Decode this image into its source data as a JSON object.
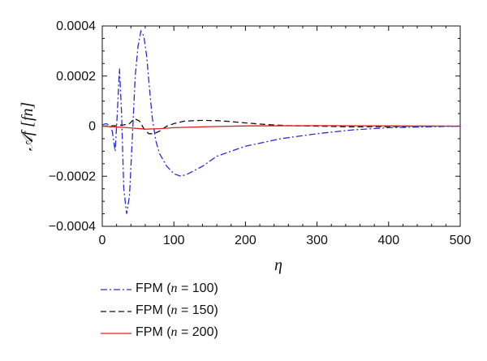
{
  "chart_data": {
    "type": "line",
    "xlabel": "η",
    "ylabel": "𝒜f [fn]",
    "xlim": [
      0,
      500
    ],
    "ylim": [
      -0.0004,
      0.0004
    ],
    "x_ticks": [
      0,
      100,
      200,
      300,
      400,
      500
    ],
    "x_tick_labels": [
      "0",
      "100",
      "200",
      "300",
      "400",
      "500"
    ],
    "y_ticks": [
      0.0004,
      0.0002,
      0,
      -0.0002,
      -0.0004
    ],
    "y_tick_labels": [
      "0.0004",
      "0.0002",
      "0",
      "−0.0002",
      "−0.0004"
    ],
    "grid": false,
    "legend_position": "bottom-left, below plot",
    "series": [
      {
        "name": "FPM (n = 100)",
        "color": "#2a2ad6",
        "style": "dash-dot",
        "x": [
          0,
          5,
          10,
          14,
          18,
          21,
          24,
          27,
          30,
          34,
          38,
          42,
          46,
          50,
          54,
          58,
          62,
          66,
          70,
          75,
          80,
          90,
          100,
          110,
          120,
          140,
          160,
          180,
          200,
          250,
          300,
          350,
          400,
          450,
          500
        ],
        "y": [
          5e-06,
          1e-05,
          5e-06,
          -2e-05,
          -0.0001,
          5e-05,
          0.00023,
          5e-05,
          -0.00025,
          -0.00035,
          -0.00028,
          -5e-05,
          0.0002,
          0.00032,
          0.00038,
          0.00036,
          0.00028,
          0.00015,
          3e-05,
          -6e-05,
          -0.00011,
          -0.00016,
          -0.00019,
          -0.0002,
          -0.00019,
          -0.00016,
          -0.00012,
          -0.0001,
          -8e-05,
          -5e-05,
          -3e-05,
          -1.5e-05,
          -6e-06,
          -3e-06,
          0
        ]
      },
      {
        "name": "FPM (n = 150)",
        "color": "#111111",
        "style": "dashed",
        "x": [
          0,
          20,
          30,
          38,
          45,
          52,
          58,
          65,
          72,
          80,
          90,
          100,
          115,
          130,
          140,
          160,
          180,
          200,
          230,
          260,
          300,
          350,
          400,
          450,
          500
        ],
        "y": [
          0,
          2e-06,
          5e-06,
          1e-05,
          3e-05,
          2e-05,
          -1e-05,
          -3e-05,
          -3e-05,
          -2e-05,
          0,
          1e-05,
          2e-05,
          2.2e-05,
          2.3e-05,
          2.2e-05,
          1.8e-05,
          1.3e-05,
          6e-06,
          2e-06,
          0,
          -3e-06,
          -2e-06,
          0,
          0
        ]
      },
      {
        "name": "FPM (n = 200)",
        "color": "#e02020",
        "style": "solid",
        "x": [
          0,
          30,
          60,
          80,
          100,
          150,
          200,
          300,
          400,
          500
        ],
        "y": [
          0,
          -5e-06,
          -1.2e-05,
          -1e-05,
          -6e-06,
          -2e-06,
          1e-06,
          2e-06,
          1e-06,
          0
        ]
      }
    ]
  },
  "legend": {
    "items": [
      {
        "prefix": "FPM (",
        "var": "n",
        "suffix": " = 100)",
        "color": "#2a2ad6",
        "style": "dash-dot"
      },
      {
        "prefix": "FPM (",
        "var": "n",
        "suffix": " = 150)",
        "color": "#111111",
        "style": "dashed"
      },
      {
        "prefix": "FPM (",
        "var": "n",
        "suffix": " = 200)",
        "color": "#e02020",
        "style": "solid"
      }
    ]
  }
}
